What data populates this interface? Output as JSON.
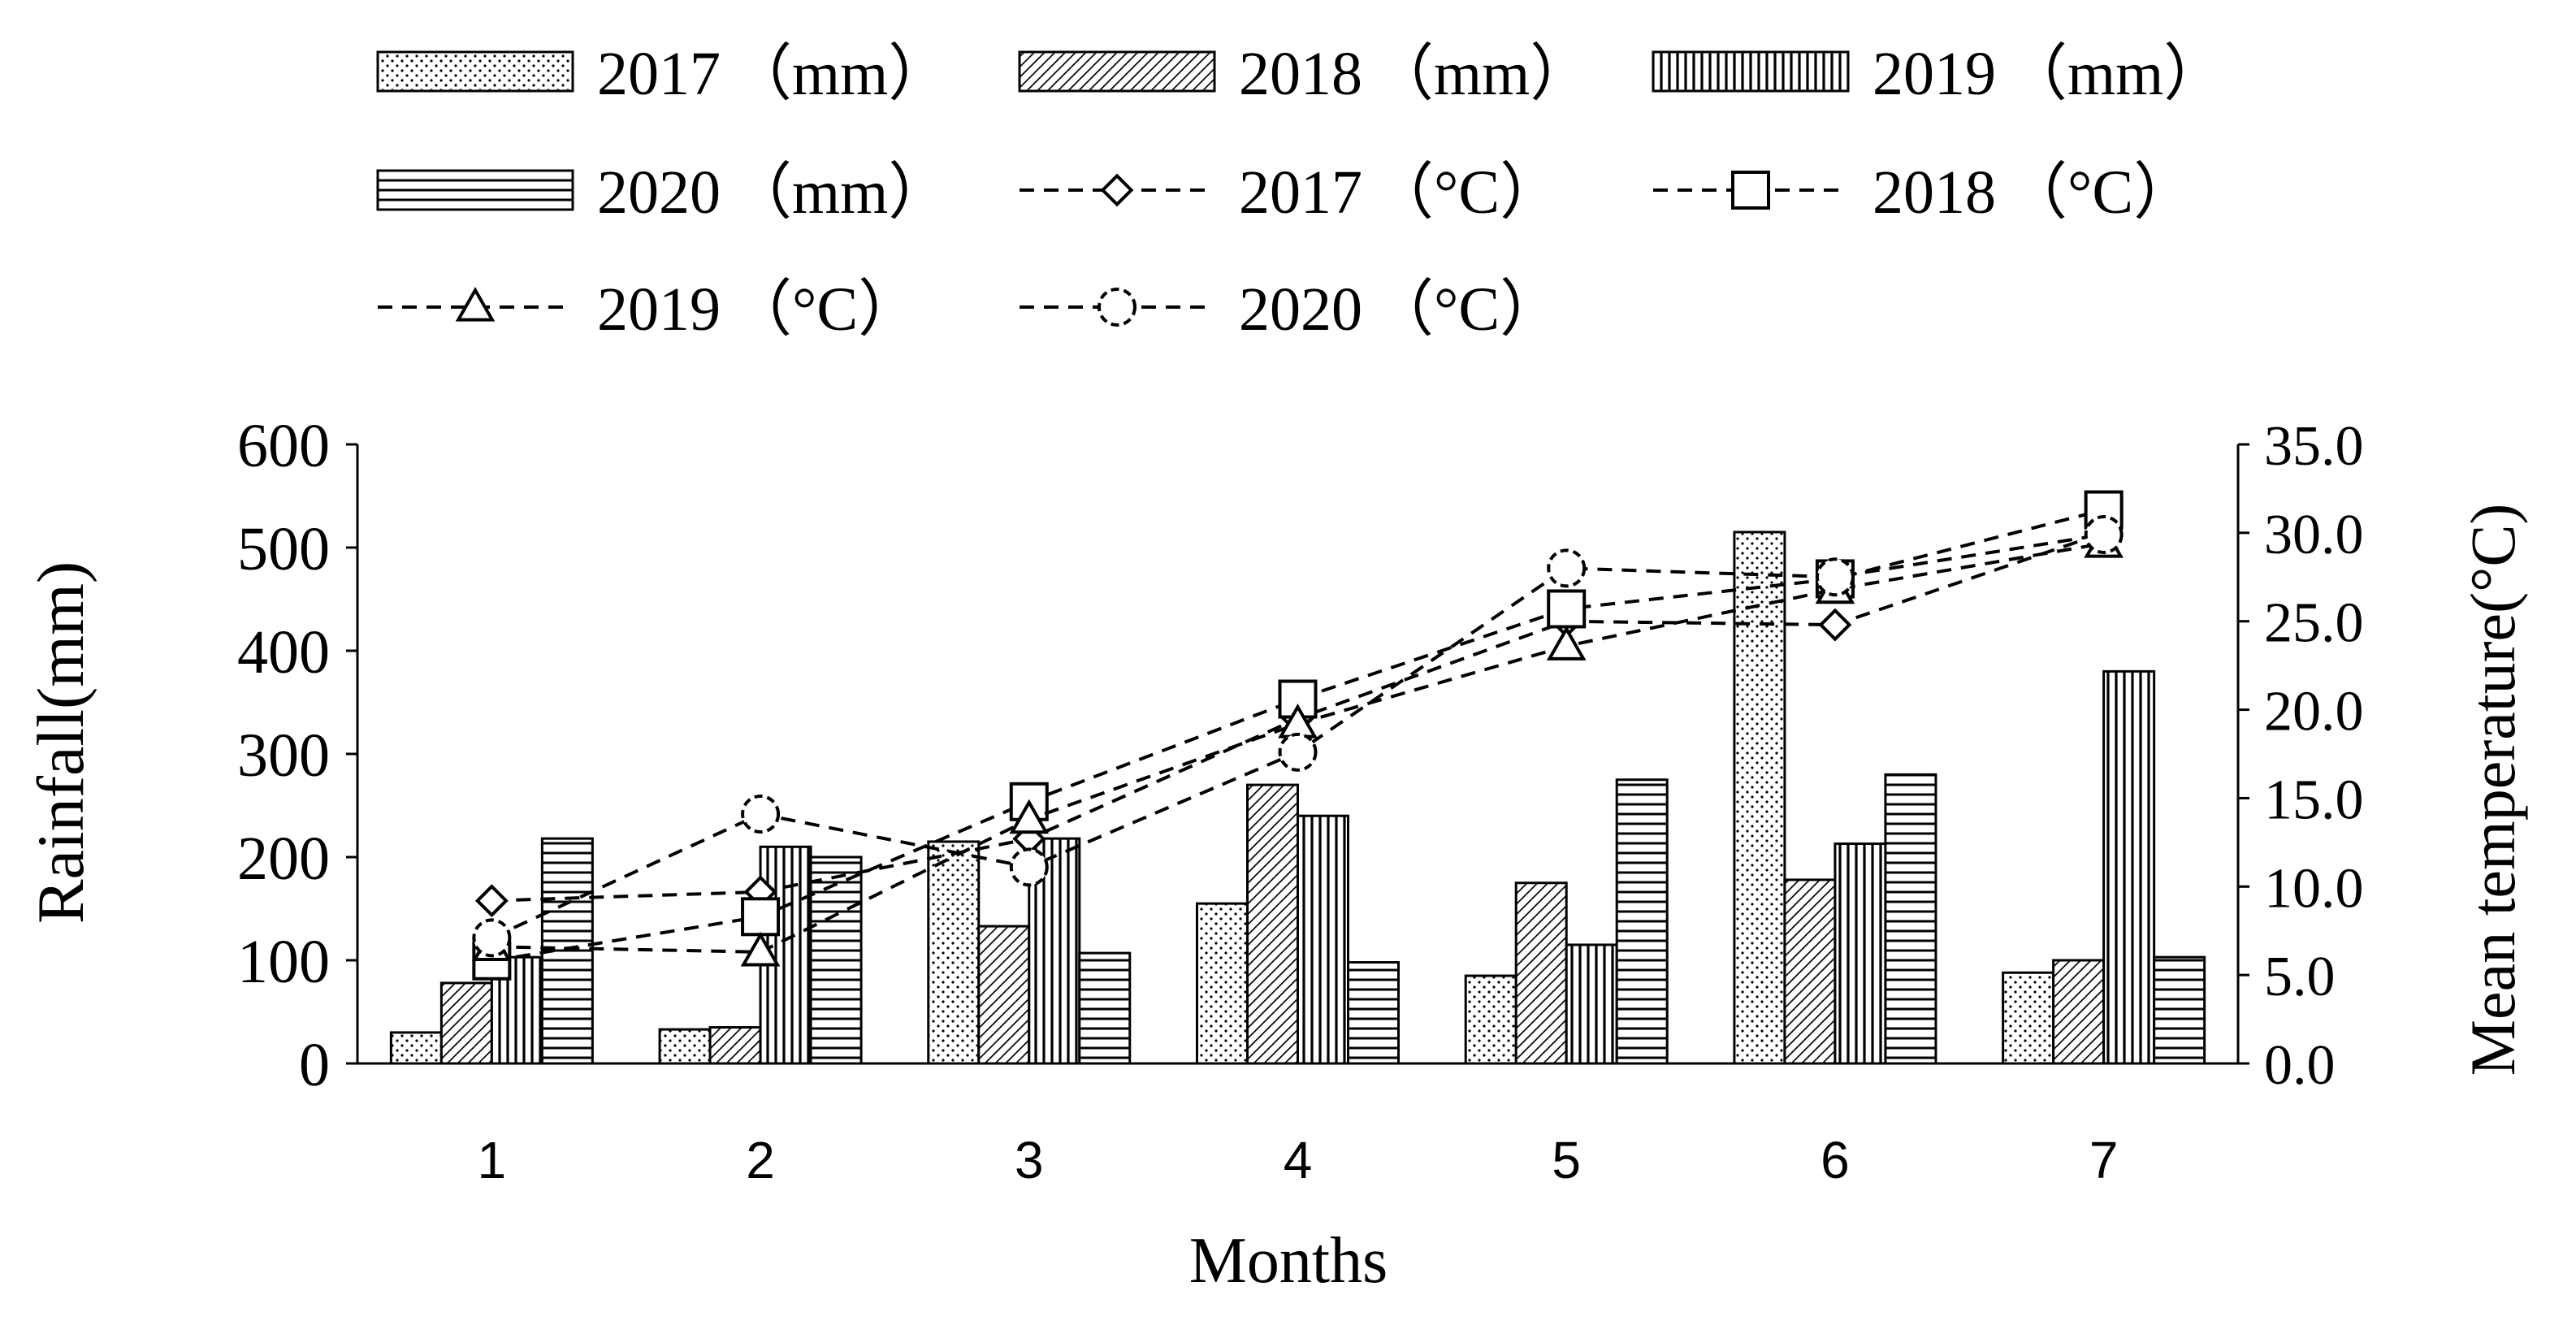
{
  "chart_data": {
    "type": "bar+line",
    "xlabel": "Months",
    "ylabel_left": "Rainfall(mm)",
    "ylabel_right": "Mean temperature(°C)",
    "categories": [
      "1",
      "2",
      "3",
      "4",
      "5",
      "6",
      "7"
    ],
    "ylim_left": [
      0,
      600
    ],
    "yticks_left": [
      "0",
      "100",
      "200",
      "300",
      "400",
      "500",
      "600"
    ],
    "ylim_right": [
      0,
      35
    ],
    "yticks_right": [
      "0.0",
      "5.0",
      "10.0",
      "15.0",
      "20.0",
      "25.0",
      "30.0",
      "35.0"
    ],
    "bar_series": [
      {
        "name": "2017",
        "unit": "（mm）",
        "pattern": "dots",
        "values": [
          30,
          33,
          215,
          155,
          85,
          515,
          88
        ]
      },
      {
        "name": "2018",
        "unit": "（mm）",
        "pattern": "diag",
        "values": [
          78,
          35,
          133,
          270,
          175,
          178,
          100
        ]
      },
      {
        "name": "2019",
        "unit": "（mm）",
        "pattern": "vert",
        "values": [
          103,
          210,
          218,
          240,
          115,
          213,
          380
        ]
      },
      {
        "name": "2020",
        "unit": "（mm）",
        "pattern": "horiz",
        "values": [
          218,
          200,
          107,
          98,
          275,
          280,
          103
        ]
      }
    ],
    "line_series": [
      {
        "name": "2017",
        "unit": "（°C）",
        "marker": "diamond",
        "values": [
          9.2,
          9.7,
          12.7,
          19.5,
          25.0,
          24.8,
          30.0
        ]
      },
      {
        "name": "2018",
        "unit": "（°C）",
        "marker": "square",
        "values": [
          5.8,
          8.3,
          14.8,
          20.6,
          25.7,
          27.4,
          31.3
        ]
      },
      {
        "name": "2019",
        "unit": "（°C）",
        "marker": "triangle",
        "values": [
          6.6,
          6.3,
          13.8,
          19.2,
          23.6,
          26.8,
          29.4
        ]
      },
      {
        "name": "2020",
        "unit": "（°C）",
        "marker": "circle",
        "values": [
          7.1,
          14.1,
          11.1,
          17.6,
          28.0,
          27.5,
          29.9
        ]
      }
    ],
    "legend_position": "top"
  }
}
